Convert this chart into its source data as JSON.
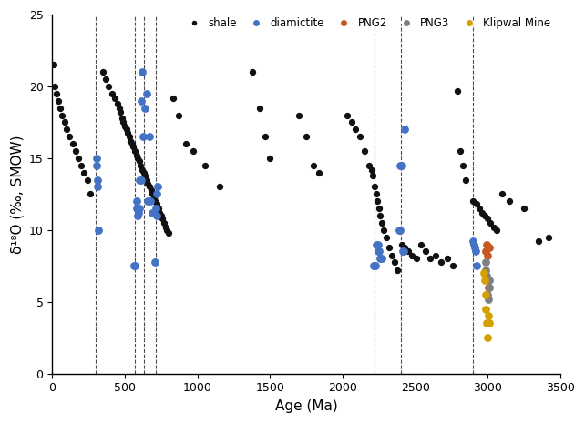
{
  "title": "",
  "xlabel": "Age (Ma)",
  "ylabel": "δ¹⁸O (‰, SMOW)",
  "xlim": [
    0,
    3500
  ],
  "ylim": [
    0,
    25
  ],
  "xticks": [
    0,
    500,
    1000,
    1500,
    2000,
    2500,
    3000,
    3500
  ],
  "yticks": [
    0,
    5,
    10,
    15,
    20,
    25
  ],
  "dashed_lines": [
    300,
    570,
    635,
    715,
    2220,
    2400,
    2900
  ],
  "shale_x": [
    10,
    20,
    30,
    40,
    55,
    70,
    85,
    100,
    120,
    140,
    160,
    180,
    200,
    220,
    240,
    260,
    350,
    370,
    390,
    410,
    430,
    450,
    460,
    470,
    480,
    490,
    500,
    510,
    520,
    530,
    540,
    550,
    560,
    570,
    580,
    590,
    600,
    610,
    620,
    630,
    640,
    650,
    660,
    670,
    680,
    690,
    700,
    710,
    720,
    730,
    740,
    750,
    760,
    770,
    780,
    790,
    800,
    830,
    870,
    920,
    970,
    1050,
    1150,
    1380,
    1430,
    1470,
    1500,
    1700,
    1750,
    1800,
    1840,
    2030,
    2060,
    2090,
    2120,
    2150,
    2180,
    2200,
    2210,
    2220,
    2230,
    2240,
    2250,
    2260,
    2270,
    2280,
    2300,
    2320,
    2340,
    2360,
    2380,
    2410,
    2430,
    2450,
    2480,
    2510,
    2540,
    2570,
    2600,
    2640,
    2680,
    2720,
    2760,
    2790,
    2810,
    2830,
    2850,
    2900,
    2920,
    2940,
    2960,
    2980,
    3000,
    3020,
    3040,
    3060,
    3100,
    3150,
    3250,
    3350,
    3420
  ],
  "shale_y": [
    21.5,
    20.0,
    19.5,
    19.0,
    18.5,
    18.0,
    17.5,
    17.0,
    16.5,
    16.0,
    15.5,
    15.0,
    14.5,
    14.0,
    13.5,
    12.5,
    21.0,
    20.5,
    20.0,
    19.5,
    19.2,
    18.8,
    18.5,
    18.2,
    17.8,
    17.5,
    17.2,
    17.0,
    16.8,
    16.5,
    16.2,
    16.0,
    15.8,
    15.5,
    15.2,
    15.0,
    14.8,
    14.5,
    14.2,
    14.0,
    13.8,
    13.5,
    13.2,
    13.0,
    12.8,
    12.5,
    12.2,
    12.0,
    11.8,
    11.5,
    11.2,
    11.0,
    10.8,
    10.5,
    10.2,
    10.0,
    9.8,
    19.2,
    18.0,
    16.0,
    15.5,
    14.5,
    13.0,
    21.0,
    18.5,
    16.5,
    15.0,
    18.0,
    16.5,
    14.5,
    14.0,
    18.0,
    17.5,
    17.0,
    16.5,
    15.5,
    14.5,
    14.2,
    13.8,
    13.0,
    12.5,
    12.0,
    11.5,
    11.0,
    10.5,
    10.0,
    9.5,
    8.8,
    8.2,
    7.8,
    7.2,
    9.0,
    8.8,
    8.5,
    8.2,
    8.0,
    9.0,
    8.5,
    8.0,
    8.2,
    7.8,
    8.0,
    7.5,
    19.7,
    15.5,
    14.5,
    13.5,
    12.0,
    11.8,
    11.5,
    11.2,
    11.0,
    10.8,
    10.5,
    10.2,
    10.0,
    12.5,
    12.0,
    11.5,
    9.2,
    9.5
  ],
  "diamictite_x": [
    305,
    305,
    310,
    315,
    320,
    565,
    568,
    580,
    582,
    590,
    592,
    600,
    602,
    612,
    614,
    618,
    628,
    638,
    648,
    658,
    668,
    678,
    688,
    710,
    712,
    718,
    722,
    728,
    2215,
    2218,
    2228,
    2232,
    2242,
    2245,
    2252,
    2260,
    2268,
    2388,
    2395,
    2398,
    2408,
    2412,
    2418,
    2425,
    2895,
    2905,
    2912,
    2918,
    2925
  ],
  "diamictite_y": [
    15.0,
    14.5,
    13.5,
    13.0,
    10.0,
    7.5,
    7.5,
    12.0,
    11.5,
    11.0,
    11.2,
    11.5,
    13.5,
    13.5,
    19.0,
    21.0,
    16.5,
    18.5,
    19.5,
    12.0,
    16.5,
    12.0,
    11.2,
    7.8,
    11.5,
    11.0,
    12.5,
    13.0,
    7.5,
    7.5,
    7.5,
    9.0,
    9.0,
    8.5,
    8.5,
    8.0,
    8.0,
    10.0,
    10.0,
    14.5,
    14.5,
    8.5,
    8.5,
    17.0,
    9.2,
    9.0,
    8.8,
    8.5,
    7.5
  ],
  "png2_x": [
    2988,
    2992,
    2996,
    3002,
    3008
  ],
  "png2_y": [
    8.5,
    9.0,
    8.2,
    6.0,
    8.8
  ],
  "png3_x": [
    2983,
    2988,
    2993,
    2998,
    3003,
    3008,
    3013
  ],
  "png3_y": [
    7.8,
    7.2,
    6.8,
    5.5,
    5.2,
    6.5,
    6.0
  ],
  "klipwal_x": [
    2972,
    2978,
    2983,
    2988,
    2993,
    2998,
    3003,
    3008
  ],
  "klipwal_y": [
    7.0,
    6.5,
    5.5,
    4.5,
    3.5,
    2.5,
    4.0,
    3.5
  ],
  "shale_color": "#111111",
  "diamictite_color": "#4472C4",
  "png2_color": "#C85820",
  "png3_color": "#808080",
  "klipwal_color": "#D4A000",
  "marker_size_shale": 18,
  "marker_size_colored": 28,
  "bg_color": "#ffffff"
}
